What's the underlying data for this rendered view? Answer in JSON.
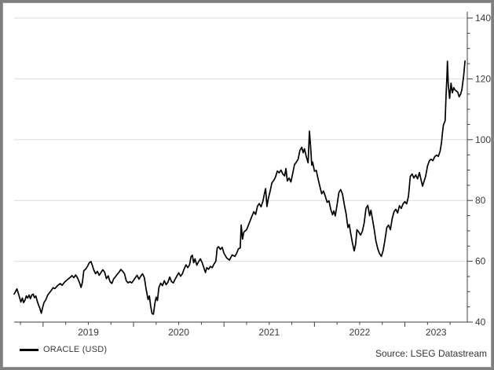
{
  "window": {
    "border_color": "#7f7f7f",
    "background": "#ffffff"
  },
  "legend": {
    "label": "ORACLE (USD)",
    "swatch_color": "#000000"
  },
  "source": {
    "text": "Source: LSEG Datastream"
  },
  "colors": {
    "line": "#000000",
    "grid": "#dcdcdc",
    "axis": "#3f3f3f",
    "tick_label": "#3a3a3a"
  },
  "chart_data": {
    "type": "line",
    "title": "",
    "xlabel": "",
    "ylabel": "",
    "grid": "horizontal-major",
    "legend_position": "bottom-left",
    "x_axis": {
      "start": 2018.68,
      "end": 2023.69,
      "year_labels": [
        "2019",
        "2020",
        "2021",
        "2022",
        "2023"
      ],
      "minor_tick_interval_years": 0.25
    },
    "y_axis": {
      "position": "right",
      "min": 40,
      "max": 140,
      "major_step": 20,
      "minor_step": 5,
      "tick_labels": [
        "40",
        "60",
        "80",
        "100",
        "120",
        "140"
      ]
    },
    "series": [
      {
        "name": "ORACLE (USD)",
        "color": "#000000",
        "points": [
          [
            2018.68,
            49.2
          ],
          [
            2018.695,
            50.0
          ],
          [
            2018.71,
            50.9
          ],
          [
            2018.725,
            49.6
          ],
          [
            2018.74,
            48.1
          ],
          [
            2018.755,
            46.6
          ],
          [
            2018.77,
            47.9
          ],
          [
            2018.785,
            46.4
          ],
          [
            2018.8,
            47.2
          ],
          [
            2018.815,
            48.6
          ],
          [
            2018.83,
            47.9
          ],
          [
            2018.845,
            48.9
          ],
          [
            2018.86,
            47.7
          ],
          [
            2018.875,
            48.9
          ],
          [
            2018.89,
            49.2
          ],
          [
            2018.905,
            48.0
          ],
          [
            2018.92,
            48.6
          ],
          [
            2018.935,
            46.9
          ],
          [
            2018.95,
            45.6
          ],
          [
            2018.965,
            44.5
          ],
          [
            2018.98,
            42.9
          ],
          [
            2018.995,
            44.8
          ],
          [
            2019.01,
            46.4
          ],
          [
            2019.03,
            47.3
          ],
          [
            2019.05,
            48.8
          ],
          [
            2019.07,
            49.6
          ],
          [
            2019.09,
            50.4
          ],
          [
            2019.11,
            51.3
          ],
          [
            2019.13,
            51.0
          ],
          [
            2019.16,
            52.0
          ],
          [
            2019.19,
            52.7
          ],
          [
            2019.21,
            52.1
          ],
          [
            2019.24,
            53.2
          ],
          [
            2019.27,
            54.0
          ],
          [
            2019.3,
            54.7
          ],
          [
            2019.32,
            55.3
          ],
          [
            2019.34,
            54.6
          ],
          [
            2019.36,
            55.5
          ],
          [
            2019.38,
            54.6
          ],
          [
            2019.4,
            53.2
          ],
          [
            2019.42,
            51.4
          ],
          [
            2019.435,
            53.2
          ],
          [
            2019.45,
            56.9
          ],
          [
            2019.47,
            57.4
          ],
          [
            2019.49,
            58.3
          ],
          [
            2019.51,
            59.5
          ],
          [
            2019.53,
            59.9
          ],
          [
            2019.545,
            58.6
          ],
          [
            2019.56,
            57.2
          ],
          [
            2019.58,
            55.9
          ],
          [
            2019.6,
            56.7
          ],
          [
            2019.62,
            55.4
          ],
          [
            2019.64,
            56.3
          ],
          [
            2019.66,
            57.2
          ],
          [
            2019.68,
            56.4
          ],
          [
            2019.7,
            54.3
          ],
          [
            2019.72,
            55.2
          ],
          [
            2019.74,
            53.3
          ],
          [
            2019.76,
            52.7
          ],
          [
            2019.78,
            54.2
          ],
          [
            2019.8,
            54.9
          ],
          [
            2019.82,
            55.7
          ],
          [
            2019.84,
            56.4
          ],
          [
            2019.86,
            57.3
          ],
          [
            2019.88,
            56.7
          ],
          [
            2019.9,
            55.9
          ],
          [
            2019.92,
            53.6
          ],
          [
            2019.94,
            52.9
          ],
          [
            2019.96,
            53.3
          ],
          [
            2019.98,
            52.9
          ],
          [
            2020.0,
            53.7
          ],
          [
            2020.02,
            54.6
          ],
          [
            2020.04,
            55.4
          ],
          [
            2020.06,
            54.1
          ],
          [
            2020.08,
            55.1
          ],
          [
            2020.1,
            55.9
          ],
          [
            2020.12,
            54.6
          ],
          [
            2020.14,
            50.8
          ],
          [
            2020.16,
            47.4
          ],
          [
            2020.175,
            48.6
          ],
          [
            2020.19,
            45.2
          ],
          [
            2020.205,
            42.8
          ],
          [
            2020.22,
            42.6
          ],
          [
            2020.235,
            46.0
          ],
          [
            2020.25,
            48.2
          ],
          [
            2020.265,
            47.1
          ],
          [
            2020.28,
            51.4
          ],
          [
            2020.3,
            52.8
          ],
          [
            2020.32,
            52.0
          ],
          [
            2020.34,
            53.6
          ],
          [
            2020.36,
            52.3
          ],
          [
            2020.38,
            53.1
          ],
          [
            2020.4,
            54.8
          ],
          [
            2020.42,
            53.3
          ],
          [
            2020.44,
            52.9
          ],
          [
            2020.46,
            54.1
          ],
          [
            2020.48,
            55.2
          ],
          [
            2020.5,
            56.2
          ],
          [
            2020.52,
            55.1
          ],
          [
            2020.54,
            55.9
          ],
          [
            2020.56,
            57.5
          ],
          [
            2020.58,
            58.8
          ],
          [
            2020.6,
            57.9
          ],
          [
            2020.62,
            58.9
          ],
          [
            2020.635,
            61.5
          ],
          [
            2020.65,
            62.0
          ],
          [
            2020.665,
            59.5
          ],
          [
            2020.68,
            60.8
          ],
          [
            2020.7,
            58.7
          ],
          [
            2020.72,
            59.9
          ],
          [
            2020.74,
            60.8
          ],
          [
            2020.76,
            59.4
          ],
          [
            2020.78,
            57.6
          ],
          [
            2020.795,
            56.3
          ],
          [
            2020.81,
            57.9
          ],
          [
            2020.83,
            57.4
          ],
          [
            2020.85,
            58.3
          ],
          [
            2020.87,
            57.9
          ],
          [
            2020.89,
            59.1
          ],
          [
            2020.91,
            60.0
          ],
          [
            2020.925,
            64.4
          ],
          [
            2020.94,
            64.8
          ],
          [
            2020.96,
            63.9
          ],
          [
            2020.98,
            64.6
          ],
          [
            2021.0,
            62.6
          ],
          [
            2021.03,
            61.1
          ],
          [
            2021.06,
            60.4
          ],
          [
            2021.09,
            62.1
          ],
          [
            2021.12,
            61.6
          ],
          [
            2021.14,
            62.6
          ],
          [
            2021.16,
            64.1
          ],
          [
            2021.18,
            64.4
          ],
          [
            2021.19,
            71.9
          ],
          [
            2021.205,
            67.3
          ],
          [
            2021.22,
            69.6
          ],
          [
            2021.25,
            70.4
          ],
          [
            2021.28,
            72.6
          ],
          [
            2021.31,
            74.9
          ],
          [
            2021.33,
            76.3
          ],
          [
            2021.35,
            75.4
          ],
          [
            2021.37,
            78.1
          ],
          [
            2021.39,
            79.0
          ],
          [
            2021.41,
            77.9
          ],
          [
            2021.43,
            79.7
          ],
          [
            2021.45,
            82.6
          ],
          [
            2021.46,
            83.9
          ],
          [
            2021.475,
            78.0
          ],
          [
            2021.49,
            80.6
          ],
          [
            2021.51,
            83.0
          ],
          [
            2021.53,
            85.8
          ],
          [
            2021.55,
            86.6
          ],
          [
            2021.57,
            87.7
          ],
          [
            2021.59,
            89.7
          ],
          [
            2021.61,
            89.1
          ],
          [
            2021.63,
            90.0
          ],
          [
            2021.65,
            88.7
          ],
          [
            2021.67,
            88.1
          ],
          [
            2021.685,
            90.5
          ],
          [
            2021.7,
            86.4
          ],
          [
            2021.72,
            87.4
          ],
          [
            2021.74,
            86.1
          ],
          [
            2021.76,
            88.9
          ],
          [
            2021.78,
            91.8
          ],
          [
            2021.8,
            92.6
          ],
          [
            2021.82,
            93.6
          ],
          [
            2021.84,
            96.5
          ],
          [
            2021.86,
            97.5
          ],
          [
            2021.875,
            95.7
          ],
          [
            2021.89,
            97.0
          ],
          [
            2021.91,
            94.4
          ],
          [
            2021.93,
            92.4
          ],
          [
            2021.945,
            102.8
          ],
          [
            2021.96,
            96.6
          ],
          [
            2021.97,
            91.6
          ],
          [
            2021.98,
            92.6
          ],
          [
            2022.0,
            89.6
          ],
          [
            2022.02,
            89.9
          ],
          [
            2022.04,
            87.1
          ],
          [
            2022.06,
            84.6
          ],
          [
            2022.08,
            82.2
          ],
          [
            2022.1,
            83.1
          ],
          [
            2022.12,
            81.4
          ],
          [
            2022.14,
            79.4
          ],
          [
            2022.16,
            79.9
          ],
          [
            2022.18,
            77.1
          ],
          [
            2022.2,
            75.3
          ],
          [
            2022.215,
            76.6
          ],
          [
            2022.23,
            74.9
          ],
          [
            2022.25,
            78.6
          ],
          [
            2022.27,
            82.6
          ],
          [
            2022.29,
            83.6
          ],
          [
            2022.31,
            82.1
          ],
          [
            2022.33,
            78.6
          ],
          [
            2022.35,
            75.6
          ],
          [
            2022.37,
            71.1
          ],
          [
            2022.385,
            72.1
          ],
          [
            2022.4,
            69.4
          ],
          [
            2022.42,
            66.1
          ],
          [
            2022.44,
            63.4
          ],
          [
            2022.455,
            65.6
          ],
          [
            2022.47,
            70.4
          ],
          [
            2022.49,
            69.6
          ],
          [
            2022.51,
            68.6
          ],
          [
            2022.53,
            69.9
          ],
          [
            2022.55,
            72.6
          ],
          [
            2022.57,
            77.4
          ],
          [
            2022.59,
            78.4
          ],
          [
            2022.61,
            75.0
          ],
          [
            2022.625,
            76.8
          ],
          [
            2022.64,
            74.1
          ],
          [
            2022.66,
            70.6
          ],
          [
            2022.68,
            66.6
          ],
          [
            2022.7,
            64.1
          ],
          [
            2022.72,
            62.5
          ],
          [
            2022.74,
            61.6
          ],
          [
            2022.76,
            63.6
          ],
          [
            2022.78,
            67.1
          ],
          [
            2022.8,
            71.1
          ],
          [
            2022.82,
            71.9
          ],
          [
            2022.84,
            70.4
          ],
          [
            2022.86,
            74.1
          ],
          [
            2022.88,
            76.3
          ],
          [
            2022.9,
            77.1
          ],
          [
            2022.92,
            75.9
          ],
          [
            2022.94,
            78.3
          ],
          [
            2022.96,
            77.4
          ],
          [
            2022.98,
            78.9
          ],
          [
            2023.0,
            79.6
          ],
          [
            2023.02,
            78.9
          ],
          [
            2023.04,
            81.4
          ],
          [
            2023.06,
            87.9
          ],
          [
            2023.08,
            88.7
          ],
          [
            2023.1,
            87.4
          ],
          [
            2023.12,
            88.4
          ],
          [
            2023.14,
            87.1
          ],
          [
            2023.16,
            89.2
          ],
          [
            2023.18,
            86.6
          ],
          [
            2023.195,
            84.7
          ],
          [
            2023.21,
            86.1
          ],
          [
            2023.23,
            88.0
          ],
          [
            2023.25,
            91.3
          ],
          [
            2023.27,
            93.0
          ],
          [
            2023.29,
            93.6
          ],
          [
            2023.31,
            93.1
          ],
          [
            2023.33,
            94.4
          ],
          [
            2023.35,
            94.9
          ],
          [
            2023.37,
            94.5
          ],
          [
            2023.39,
            96.2
          ],
          [
            2023.405,
            99.1
          ],
          [
            2023.415,
            102.1
          ],
          [
            2023.425,
            104.7
          ],
          [
            2023.435,
            105.5
          ],
          [
            2023.445,
            106.2
          ],
          [
            2023.455,
            114.2
          ],
          [
            2023.465,
            121.0
          ],
          [
            2023.47,
            125.8
          ],
          [
            2023.48,
            118.1
          ],
          [
            2023.495,
            113.6
          ],
          [
            2023.51,
            118.6
          ],
          [
            2023.525,
            115.4
          ],
          [
            2023.54,
            117.1
          ],
          [
            2023.555,
            116.3
          ],
          [
            2023.57,
            116.0
          ],
          [
            2023.585,
            115.6
          ],
          [
            2023.6,
            114.1
          ],
          [
            2023.615,
            114.9
          ],
          [
            2023.63,
            116.4
          ],
          [
            2023.65,
            121.1
          ],
          [
            2023.665,
            125.9
          ]
        ]
      }
    ]
  }
}
